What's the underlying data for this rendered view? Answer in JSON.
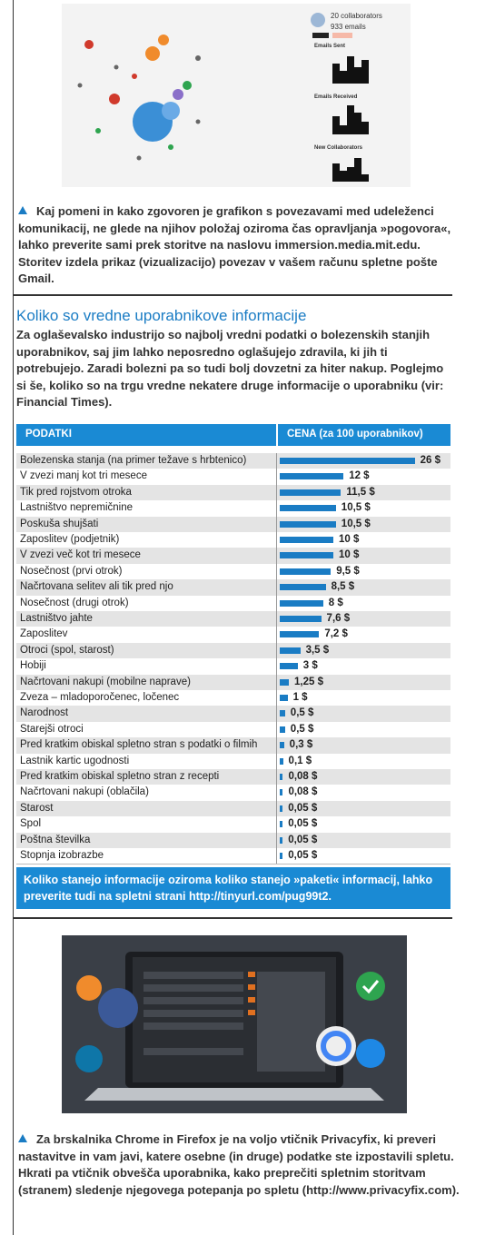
{
  "figure1": {
    "collaborators": "20 collaborators",
    "emails": "933 emails",
    "panels": [
      "Emails Sent",
      "Emails Received",
      "New Collaborators"
    ]
  },
  "caption1": "Kaj pomeni in kako zgovoren je grafikon s povezavami med udeleženci komunikacij, ne glede na njihov položaj oziroma čas opravljanja »pogovora«, lahko preverite sami prek storitve na naslovu immersion.media.mit.edu. Storitev izdela prikaz (vizualizacijo) povezav v vašem računu spletne pošte Gmail.",
  "section": {
    "title": "Koliko so vredne uporabnikove informacije",
    "intro": "Za oglaševalsko industrijo so najbolj vredni podatki o bolezenskih stanjih uporabnikov, saj jim lahko neposredno oglašujejo zdravila, ki jih ti potrebujejo. Zaradi bolezni pa so tudi bolj dovzetni za hiter nakup. Poglejmo si še, koliko so na trgu vredne nekatere druge informacije o uporabniku (vir: Financial Times)."
  },
  "table": {
    "headers": [
      "PODATKI",
      "CENA (za 100 uporabnikov)"
    ],
    "rows": [
      {
        "label": "Bolezenska stanja (na primer težave s hrbtenico)",
        "value": 26,
        "value_label": "26 $"
      },
      {
        "label": "V zvezi manj kot tri mesece",
        "value": 12,
        "value_label": "12 $"
      },
      {
        "label": "Tik pred rojstvom otroka",
        "value": 11.5,
        "value_label": "11,5 $"
      },
      {
        "label": "Lastništvo nepremičnine",
        "value": 10.5,
        "value_label": "10,5 $"
      },
      {
        "label": "Poskuša shujšati",
        "value": 10.5,
        "value_label": "10,5 $"
      },
      {
        "label": "Zaposlitev (podjetnik)",
        "value": 10,
        "value_label": "10 $"
      },
      {
        "label": "V zvezi več kot tri mesece",
        "value": 10,
        "value_label": "10 $"
      },
      {
        "label": "Nosečnost (prvi otrok)",
        "value": 9.5,
        "value_label": "9,5 $"
      },
      {
        "label": "Načrtovana selitev ali tik pred njo",
        "value": 8.5,
        "value_label": "8,5 $"
      },
      {
        "label": "Nosečnost (drugi otrok)",
        "value": 8,
        "value_label": "8 $"
      },
      {
        "label": "Lastništvo jahte",
        "value": 7.6,
        "value_label": "7,6 $"
      },
      {
        "label": "Zaposlitev",
        "value": 7.2,
        "value_label": "7,2 $"
      },
      {
        "label": "Otroci (spol, starost)",
        "value": 3.5,
        "value_label": "3,5 $"
      },
      {
        "label": "Hobiji",
        "value": 3,
        "value_label": "3 $"
      },
      {
        "label": "Načrtovani nakupi (mobilne naprave)",
        "value": 1.25,
        "value_label": "1,25 $"
      },
      {
        "label": "Zveza – mladoporočenec, ločenec",
        "value": 1,
        "value_label": "1 $"
      },
      {
        "label": "Narodnost",
        "value": 0.5,
        "value_label": "0,5 $"
      },
      {
        "label": "Starejši otroci",
        "value": 0.5,
        "value_label": "0,5 $"
      },
      {
        "label": "Pred kratkim obiskal spletno stran s podatki o filmih",
        "value": 0.3,
        "value_label": "0,3 $"
      },
      {
        "label": "Lastnik kartic ugodnosti",
        "value": 0.1,
        "value_label": "0,1 $"
      },
      {
        "label": "Pred kratkim obiskal spletno stran z recepti",
        "value": 0.08,
        "value_label": "0,08 $"
      },
      {
        "label": "Načrtovani nakupi (oblačila)",
        "value": 0.08,
        "value_label": "0,08 $"
      },
      {
        "label": "Starost",
        "value": 0.05,
        "value_label": "0,05 $"
      },
      {
        "label": "Spol",
        "value": 0.05,
        "value_label": "0,05 $"
      },
      {
        "label": "Poštna številka",
        "value": 0.05,
        "value_label": "0,05 $"
      },
      {
        "label": "Stopnja izobrazbe",
        "value": 0.05,
        "value_label": "0,05 $"
      }
    ],
    "footer": "Koliko stanejo informacije oziroma koliko stanejo »paketi« informacij, lahko preverite tudi na spletni strani http://tinyurl.com/pug99t2."
  },
  "caption2": "Za brskalnika Chrome in Firefox je na voljo vtičnik Privacyfix, ki preveri nastavitve in vam javi, katere osebne (in druge) podatke ste izpostavili spletu. Hkrati pa vtičnik obvešča uporabnika, kako preprečiti spletnim storitvam (stranem) sledenje njegovega potepanja po spletu (http://www.privacyfix.com)."
}
